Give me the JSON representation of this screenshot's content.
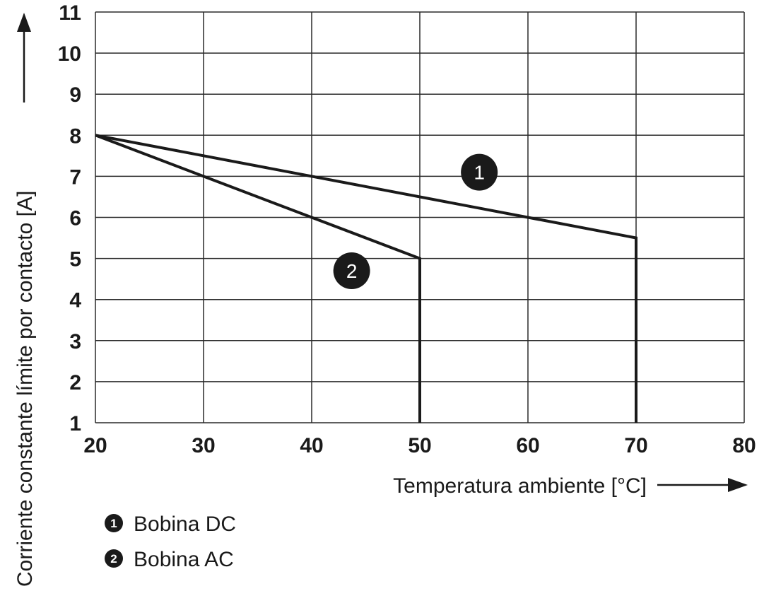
{
  "chart_data": {
    "type": "line",
    "xlabel": "Temperatura ambiente [°C]",
    "ylabel": "Corriente constante límite por contacto [A]",
    "xlim": [
      20,
      80
    ],
    "ylim": [
      1,
      11
    ],
    "x_ticks": [
      "20",
      "30",
      "40",
      "50",
      "60",
      "70",
      "80"
    ],
    "y_ticks": [
      "1",
      "2",
      "3",
      "4",
      "5",
      "6",
      "7",
      "8",
      "9",
      "10",
      "11"
    ],
    "grid": true,
    "series": [
      {
        "marker": "1",
        "name": "Bobina DC",
        "points": [
          [
            20,
            8
          ],
          [
            70,
            5.5
          ],
          [
            70,
            1
          ]
        ],
        "label_anchor": [
          55.5,
          7.1
        ]
      },
      {
        "marker": "2",
        "name": "Bobina AC",
        "points": [
          [
            20,
            8
          ],
          [
            50,
            5
          ],
          [
            50,
            1
          ]
        ],
        "label_anchor": [
          43.7,
          4.7
        ]
      }
    ],
    "legend": [
      {
        "marker": "1",
        "label": "Bobina DC"
      },
      {
        "marker": "2",
        "label": "Bobina AC"
      }
    ]
  }
}
